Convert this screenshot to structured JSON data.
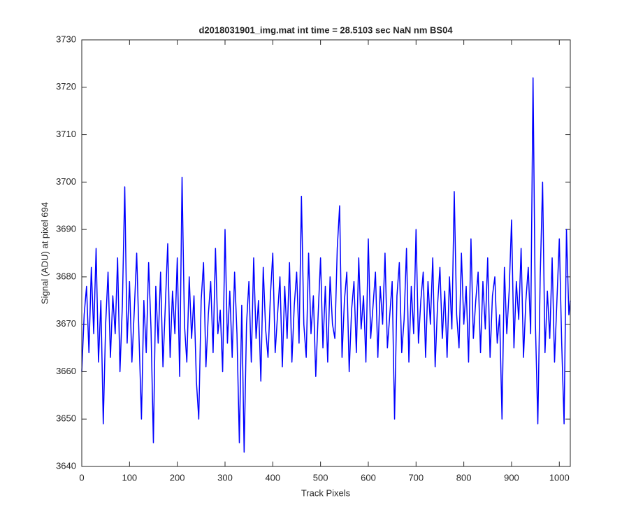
{
  "chart_data": {
    "type": "line",
    "title": "d2018031901_img.mat int time = 28.5103 sec  NaN nm BS04",
    "xlabel": "Track Pixels",
    "ylabel": "Signal (ADU) at pixel 694",
    "color": "#0000ff",
    "grid": false,
    "xlim": [
      0,
      1023
    ],
    "ylim": [
      3640,
      3730
    ],
    "xticks": [
      0,
      100,
      200,
      300,
      400,
      500,
      600,
      700,
      800,
      900,
      1000
    ],
    "yticks": [
      3640,
      3650,
      3660,
      3670,
      3680,
      3690,
      3700,
      3710,
      3720,
      3730
    ],
    "x": [
      0,
      5,
      10,
      15,
      20,
      25,
      30,
      35,
      40,
      45,
      50,
      55,
      60,
      65,
      70,
      75,
      80,
      85,
      90,
      95,
      100,
      105,
      110,
      115,
      120,
      125,
      130,
      135,
      140,
      145,
      150,
      155,
      160,
      165,
      170,
      175,
      180,
      185,
      190,
      195,
      200,
      205,
      210,
      215,
      220,
      225,
      230,
      235,
      240,
      245,
      250,
      255,
      260,
      265,
      270,
      275,
      280,
      285,
      290,
      295,
      300,
      305,
      310,
      315,
      320,
      325,
      330,
      335,
      340,
      345,
      350,
      355,
      360,
      365,
      370,
      375,
      380,
      385,
      390,
      395,
      400,
      405,
      410,
      415,
      420,
      425,
      430,
      435,
      440,
      445,
      450,
      455,
      460,
      465,
      470,
      475,
      480,
      485,
      490,
      495,
      500,
      505,
      510,
      515,
      520,
      525,
      530,
      535,
      540,
      545,
      550,
      555,
      560,
      565,
      570,
      575,
      580,
      585,
      590,
      595,
      600,
      605,
      610,
      615,
      620,
      625,
      630,
      635,
      640,
      645,
      650,
      655,
      660,
      665,
      670,
      675,
      680,
      685,
      690,
      695,
      700,
      705,
      710,
      715,
      720,
      725,
      730,
      735,
      740,
      745,
      750,
      755,
      760,
      765,
      770,
      775,
      780,
      785,
      790,
      795,
      800,
      805,
      810,
      815,
      820,
      825,
      830,
      835,
      840,
      845,
      850,
      855,
      860,
      865,
      870,
      875,
      880,
      885,
      890,
      895,
      900,
      905,
      910,
      915,
      920,
      925,
      930,
      935,
      940,
      945,
      950,
      955,
      960,
      965,
      970,
      975,
      980,
      985,
      990,
      995,
      1000,
      1005,
      1010,
      1015,
      1020,
      1023
    ],
    "values": [
      3660,
      3672,
      3678,
      3664,
      3682,
      3668,
      3686,
      3662,
      3675,
      3649,
      3670,
      3681,
      3663,
      3676,
      3668,
      3684,
      3660,
      3674,
      3699,
      3666,
      3679,
      3662,
      3673,
      3685,
      3667,
      3650,
      3675,
      3664,
      3683,
      3669,
      3645,
      3678,
      3666,
      3681,
      3661,
      3674,
      3687,
      3663,
      3677,
      3668,
      3684,
      3659,
      3701,
      3670,
      3662,
      3680,
      3667,
      3676,
      3658,
      3650,
      3675,
      3683,
      3661,
      3672,
      3679,
      3664,
      3686,
      3668,
      3673,
      3660,
      3690,
      3666,
      3677,
      3663,
      3681,
      3668,
      3645,
      3674,
      3643,
      3670,
      3679,
      3662,
      3684,
      3667,
      3675,
      3658,
      3682,
      3669,
      3663,
      3676,
      3685,
      3664,
      3672,
      3680,
      3661,
      3678,
      3667,
      3683,
      3662,
      3674,
      3681,
      3666,
      3697,
      3670,
      3663,
      3685,
      3668,
      3676,
      3659,
      3672,
      3684,
      3665,
      3678,
      3662,
      3680,
      3670,
      3667,
      3686,
      3695,
      3663,
      3675,
      3681,
      3660,
      3673,
      3679,
      3664,
      3684,
      3669,
      3676,
      3662,
      3688,
      3667,
      3674,
      3681,
      3663,
      3678,
      3670,
      3685,
      3665,
      3672,
      3679,
      3650,
      3676,
      3683,
      3664,
      3671,
      3686,
      3662,
      3678,
      3668,
      3690,
      3666,
      3675,
      3681,
      3663,
      3679,
      3670,
      3684,
      3661,
      3674,
      3682,
      3667,
      3677,
      3663,
      3680,
      3669,
      3698,
      3672,
      3665,
      3685,
      3670,
      3678,
      3662,
      3688,
      3667,
      3675,
      3681,
      3664,
      3679,
      3669,
      3684,
      3663,
      3676,
      3680,
      3666,
      3672,
      3650,
      3682,
      3668,
      3677,
      3692,
      3665,
      3679,
      3671,
      3686,
      3663,
      3675,
      3682,
      3668,
      3722,
      3670,
      3649,
      3680,
      3700,
      3664,
      3677,
      3667,
      3684,
      3662,
      3675,
      3688,
      3666,
      3649,
      3690,
      3672,
      3675
    ]
  }
}
